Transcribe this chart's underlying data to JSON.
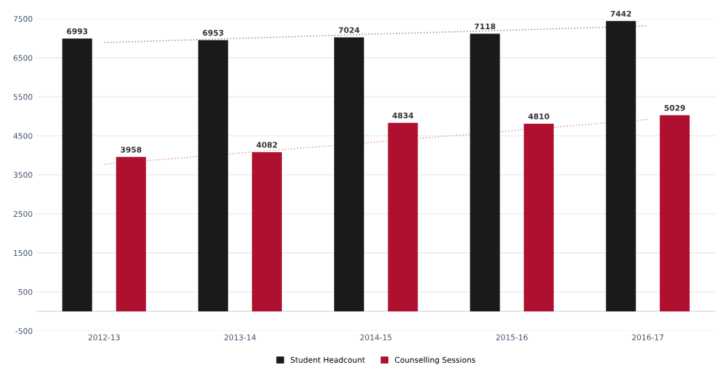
{
  "chart_data": {
    "type": "bar",
    "categories": [
      "2012-13",
      "2013-14",
      "2014-15",
      "2015-16",
      "2016-17"
    ],
    "series": [
      {
        "name": "Student Headcount",
        "color": "#1a1a1a",
        "values": [
          6993,
          6953,
          7024,
          7118,
          7442
        ],
        "value_labels": [
          "6993",
          "6953",
          "7024",
          "7118",
          "7442"
        ]
      },
      {
        "name": "Counselling Sessions",
        "color": "#b01030",
        "values": [
          3958,
          4082,
          4834,
          4810,
          5029
        ],
        "value_labels": [
          "3958",
          "4082",
          "4834",
          "4810",
          "5029"
        ]
      },
      {
        "type": "line",
        "color": "#999999",
        "line_style": "dotted",
        "x": [
          "2012-13",
          "2013-14",
          "2014-15",
          "2015-16",
          "2016-17"
        ],
        "values": [
          6890,
          7000,
          7110,
          7210,
          7320
        ]
      },
      {
        "type": "line",
        "color": "#e8a0a8",
        "line_style": "dotted",
        "x": [
          "2012-13",
          "2013-14",
          "2014-15",
          "2015-16",
          "2016-17"
        ],
        "values": [
          3770,
          4060,
          4340,
          4630,
          4920
        ]
      }
    ],
    "ylim": [
      -500,
      7500
    ],
    "yticks": [
      -500,
      500,
      1500,
      2500,
      3500,
      4500,
      5500,
      6500,
      7500
    ],
    "ref_lines": [
      {
        "axis": "y",
        "value": 0,
        "color": "#dddddd"
      }
    ],
    "grid": "y",
    "legend": "bottom"
  }
}
